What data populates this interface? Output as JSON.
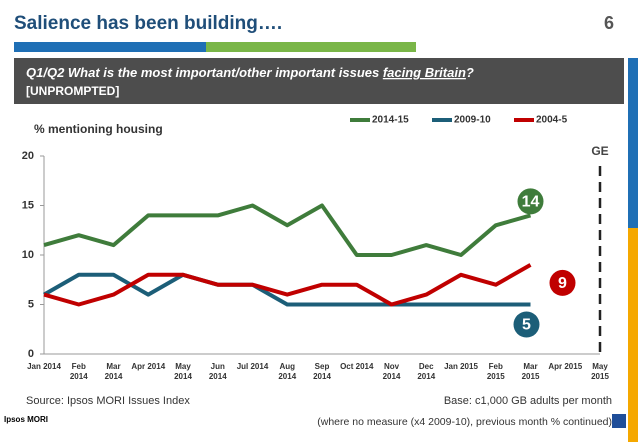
{
  "header": {
    "title": "Salience has been building….",
    "page_number": "6"
  },
  "question": {
    "line1_pre": "Q1/Q2 What is the most important/other important issues ",
    "line1_underlined": "facing Britain",
    "line1_post": "?",
    "line2": "[UNPROMPTED]"
  },
  "chart_data": {
    "type": "line",
    "y_axis_label": "% mentioning housing",
    "categories": [
      "Jan 2014",
      "Feb 2014",
      "Mar 2014",
      "Apr 2014",
      "May 2014",
      "Jun 2014",
      "Jul 2014",
      "Aug 2014",
      "Sep 2014",
      "Oct 2014",
      "Nov 2014",
      "Dec 2014",
      "Jan 2015",
      "Feb 2015",
      "Mar 2015",
      "Apr 2015",
      "May 2015"
    ],
    "series": [
      {
        "name": "2014-15",
        "color": "#3f7c3b",
        "values": [
          11,
          12,
          11,
          14,
          14,
          14,
          15,
          13,
          15,
          10,
          10,
          11,
          10,
          13,
          14,
          null,
          null
        ]
      },
      {
        "name": "2009-10",
        "color": "#1c5e78",
        "values": [
          6,
          8,
          8,
          6,
          8,
          7,
          7,
          5,
          5,
          5,
          5,
          5,
          5,
          5,
          5,
          null,
          null
        ]
      },
      {
        "name": "2004-5",
        "color": "#c00000",
        "values": [
          6,
          5,
          6,
          8,
          8,
          7,
          7,
          6,
          7,
          7,
          5,
          6,
          8,
          7,
          9,
          null,
          null
        ]
      }
    ],
    "ylim": [
      0,
      20
    ],
    "yticks": [
      0,
      5,
      10,
      15,
      20
    ],
    "annotation": "GE"
  },
  "footer": {
    "source": "Source:  Ipsos MORI Issues Index",
    "base": "Base: c1,000 GB adults per month",
    "note": "(where no measure (x4 2009-10), previous month % continued)",
    "logo": "Ipsos MORI"
  }
}
